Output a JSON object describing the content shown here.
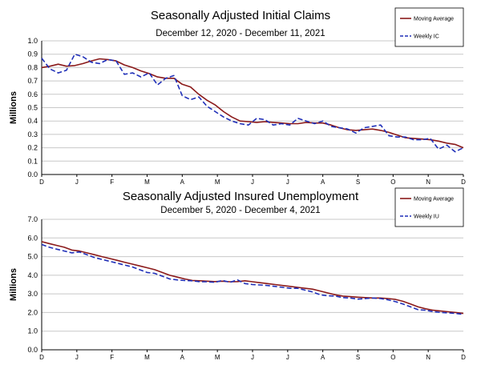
{
  "chart_data": [
    {
      "type": "line",
      "title": "Seasonally Adjusted Initial Claims",
      "subtitle": "December 12, 2020 - December 11, 2021",
      "ylabel": "Millions",
      "xlabel": "",
      "ylim": [
        0,
        1.0
      ],
      "yticks": [
        "0.0",
        "0.1",
        "0.2",
        "0.3",
        "0.4",
        "0.5",
        "0.6",
        "0.7",
        "0.8",
        "0.9",
        "1.0"
      ],
      "xticks": [
        "D",
        "J",
        "F",
        "M",
        "A",
        "M",
        "J",
        "J",
        "A",
        "S",
        "O",
        "N",
        "D"
      ],
      "grid": true,
      "legend_position": "top-right",
      "series": [
        {
          "name": "Moving Average",
          "color": "#8B1A1A",
          "style": "solid",
          "values": [
            0.8,
            0.81,
            0.825,
            0.81,
            0.815,
            0.83,
            0.85,
            0.865,
            0.86,
            0.85,
            0.82,
            0.8,
            0.775,
            0.755,
            0.73,
            0.72,
            0.72,
            0.675,
            0.655,
            0.6,
            0.555,
            0.52,
            0.47,
            0.43,
            0.4,
            0.395,
            0.39,
            0.395,
            0.39,
            0.385,
            0.38,
            0.38,
            0.39,
            0.385,
            0.385,
            0.37,
            0.35,
            0.335,
            0.33,
            0.335,
            0.34,
            0.33,
            0.315,
            0.295,
            0.275,
            0.27,
            0.265,
            0.26,
            0.25,
            0.235,
            0.225,
            0.2
          ]
        },
        {
          "name": "Weekly IC",
          "color": "#1F2FB8",
          "style": "dashed",
          "values": [
            0.87,
            0.79,
            0.76,
            0.78,
            0.9,
            0.88,
            0.84,
            0.83,
            0.86,
            0.85,
            0.75,
            0.76,
            0.73,
            0.76,
            0.67,
            0.72,
            0.74,
            0.59,
            0.56,
            0.58,
            0.51,
            0.47,
            0.43,
            0.4,
            0.38,
            0.37,
            0.42,
            0.41,
            0.37,
            0.38,
            0.37,
            0.42,
            0.4,
            0.38,
            0.4,
            0.36,
            0.35,
            0.34,
            0.31,
            0.35,
            0.36,
            0.37,
            0.29,
            0.28,
            0.28,
            0.26,
            0.26,
            0.27,
            0.19,
            0.22,
            0.17,
            0.2
          ]
        }
      ]
    },
    {
      "type": "line",
      "title": "Seasonally Adjusted Insured Unemployment",
      "subtitle": "December 5, 2020 - December 4, 2021",
      "ylabel": "Millions",
      "xlabel": "",
      "ylim": [
        0,
        7.0
      ],
      "yticks": [
        "0.0",
        "1.0",
        "2.0",
        "3.0",
        "4.0",
        "5.0",
        "6.0",
        "7.0"
      ],
      "xticks": [
        "D",
        "J",
        "F",
        "M",
        "A",
        "M",
        "J",
        "J",
        "A",
        "S",
        "O",
        "N",
        "D"
      ],
      "grid": true,
      "legend_position": "top-right",
      "series": [
        {
          "name": "Moving Average",
          "color": "#8B1A1A",
          "style": "solid",
          "values": [
            5.8,
            5.7,
            5.6,
            5.5,
            5.35,
            5.3,
            5.2,
            5.1,
            5.0,
            4.9,
            4.8,
            4.7,
            4.6,
            4.5,
            4.4,
            4.3,
            4.15,
            4.0,
            3.9,
            3.8,
            3.72,
            3.7,
            3.68,
            3.66,
            3.68,
            3.65,
            3.66,
            3.7,
            3.65,
            3.6,
            3.55,
            3.5,
            3.45,
            3.4,
            3.35,
            3.3,
            3.25,
            3.15,
            3.05,
            2.95,
            2.88,
            2.85,
            2.82,
            2.8,
            2.78,
            2.78,
            2.75,
            2.7,
            2.6,
            2.45,
            2.3,
            2.2,
            2.12,
            2.08,
            2.04,
            2.0,
            1.95
          ]
        },
        {
          "name": "Weekly IU",
          "color": "#1F2FB8",
          "style": "dashed",
          "values": [
            5.65,
            5.5,
            5.4,
            5.3,
            5.2,
            5.25,
            5.1,
            4.95,
            4.85,
            4.75,
            4.65,
            4.55,
            4.45,
            4.3,
            4.15,
            4.1,
            3.95,
            3.8,
            3.75,
            3.72,
            3.7,
            3.65,
            3.65,
            3.62,
            3.72,
            3.62,
            3.75,
            3.55,
            3.5,
            3.48,
            3.45,
            3.4,
            3.35,
            3.3,
            3.3,
            3.2,
            3.1,
            2.95,
            2.9,
            2.88,
            2.8,
            2.78,
            2.72,
            2.75,
            2.78,
            2.75,
            2.68,
            2.58,
            2.45,
            2.3,
            2.15,
            2.12,
            2.05,
            2.0,
            1.98,
            1.95,
            1.9
          ]
        }
      ]
    }
  ]
}
